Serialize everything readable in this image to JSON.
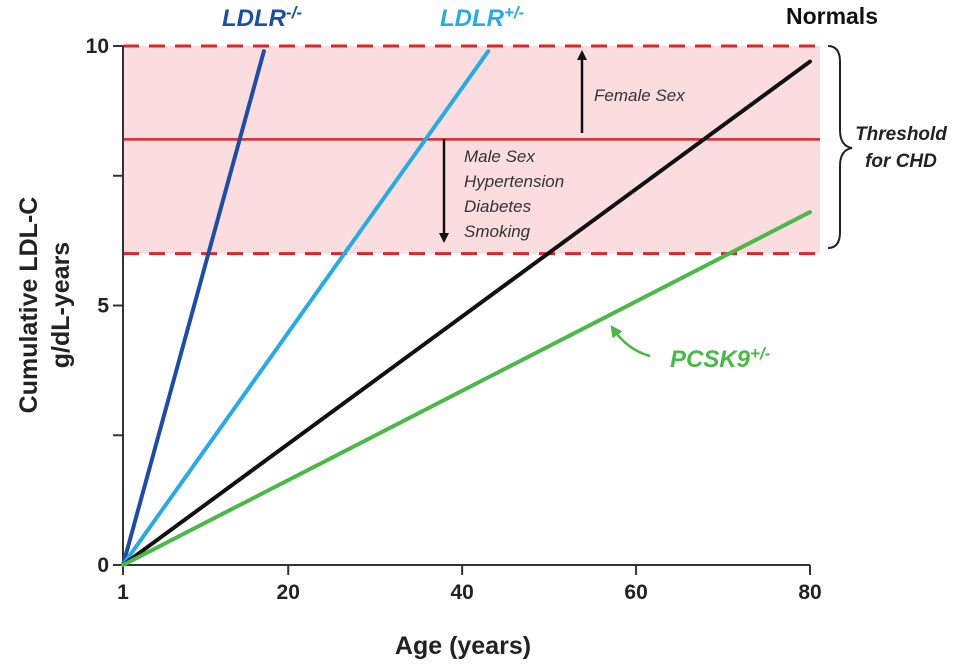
{
  "chart_data": {
    "type": "line",
    "xlabel": "Age (years)",
    "ylabel": [
      "Cumulative LDL-C",
      "g/dL-years"
    ],
    "xlim": [
      1,
      80
    ],
    "ylim": [
      0,
      10
    ],
    "x_ticks": [
      {
        "value": 1,
        "label": "1"
      },
      {
        "value": 20,
        "label": "20"
      },
      {
        "value": 40,
        "label": "40"
      },
      {
        "value": 60,
        "label": "60"
      },
      {
        "value": 80,
        "label": "80"
      }
    ],
    "y_ticks": [
      {
        "value": 0,
        "label": "0"
      },
      {
        "value": 2.5,
        "label": ""
      },
      {
        "value": 5,
        "label": "5"
      },
      {
        "value": 7.5,
        "label": ""
      },
      {
        "value": 10,
        "label": "10"
      }
    ],
    "grid": false,
    "threshold_band": {
      "lower": 6.0,
      "upper": 10.0,
      "threshold": 8.2,
      "color": "#fbdcdf",
      "line_color": "#d9272e"
    },
    "series": [
      {
        "name": "LDLR",
        "superscript": "-/-",
        "color": "#1e4da1",
        "x": [
          1,
          17.2
        ],
        "y": [
          0,
          9.9
        ]
      },
      {
        "name": "LDLR",
        "superscript": "+/-",
        "color": "#29abe2",
        "x": [
          1,
          43
        ],
        "y": [
          0,
          9.9
        ]
      },
      {
        "name": "Normals",
        "superscript": "",
        "color": "#111111",
        "x": [
          1,
          80
        ],
        "y": [
          0,
          9.7
        ]
      },
      {
        "name": "PCSK9",
        "superscript": "+/-",
        "color": "#4cb848",
        "x": [
          1,
          80
        ],
        "y": [
          0,
          6.8
        ]
      }
    ],
    "annotations": {
      "up_label": "Female Sex",
      "down_labels": [
        "Male Sex",
        "Hypertension",
        "Diabetes",
        "Smoking"
      ],
      "threshold_label": [
        "Threshold",
        "for CHD"
      ]
    }
  }
}
